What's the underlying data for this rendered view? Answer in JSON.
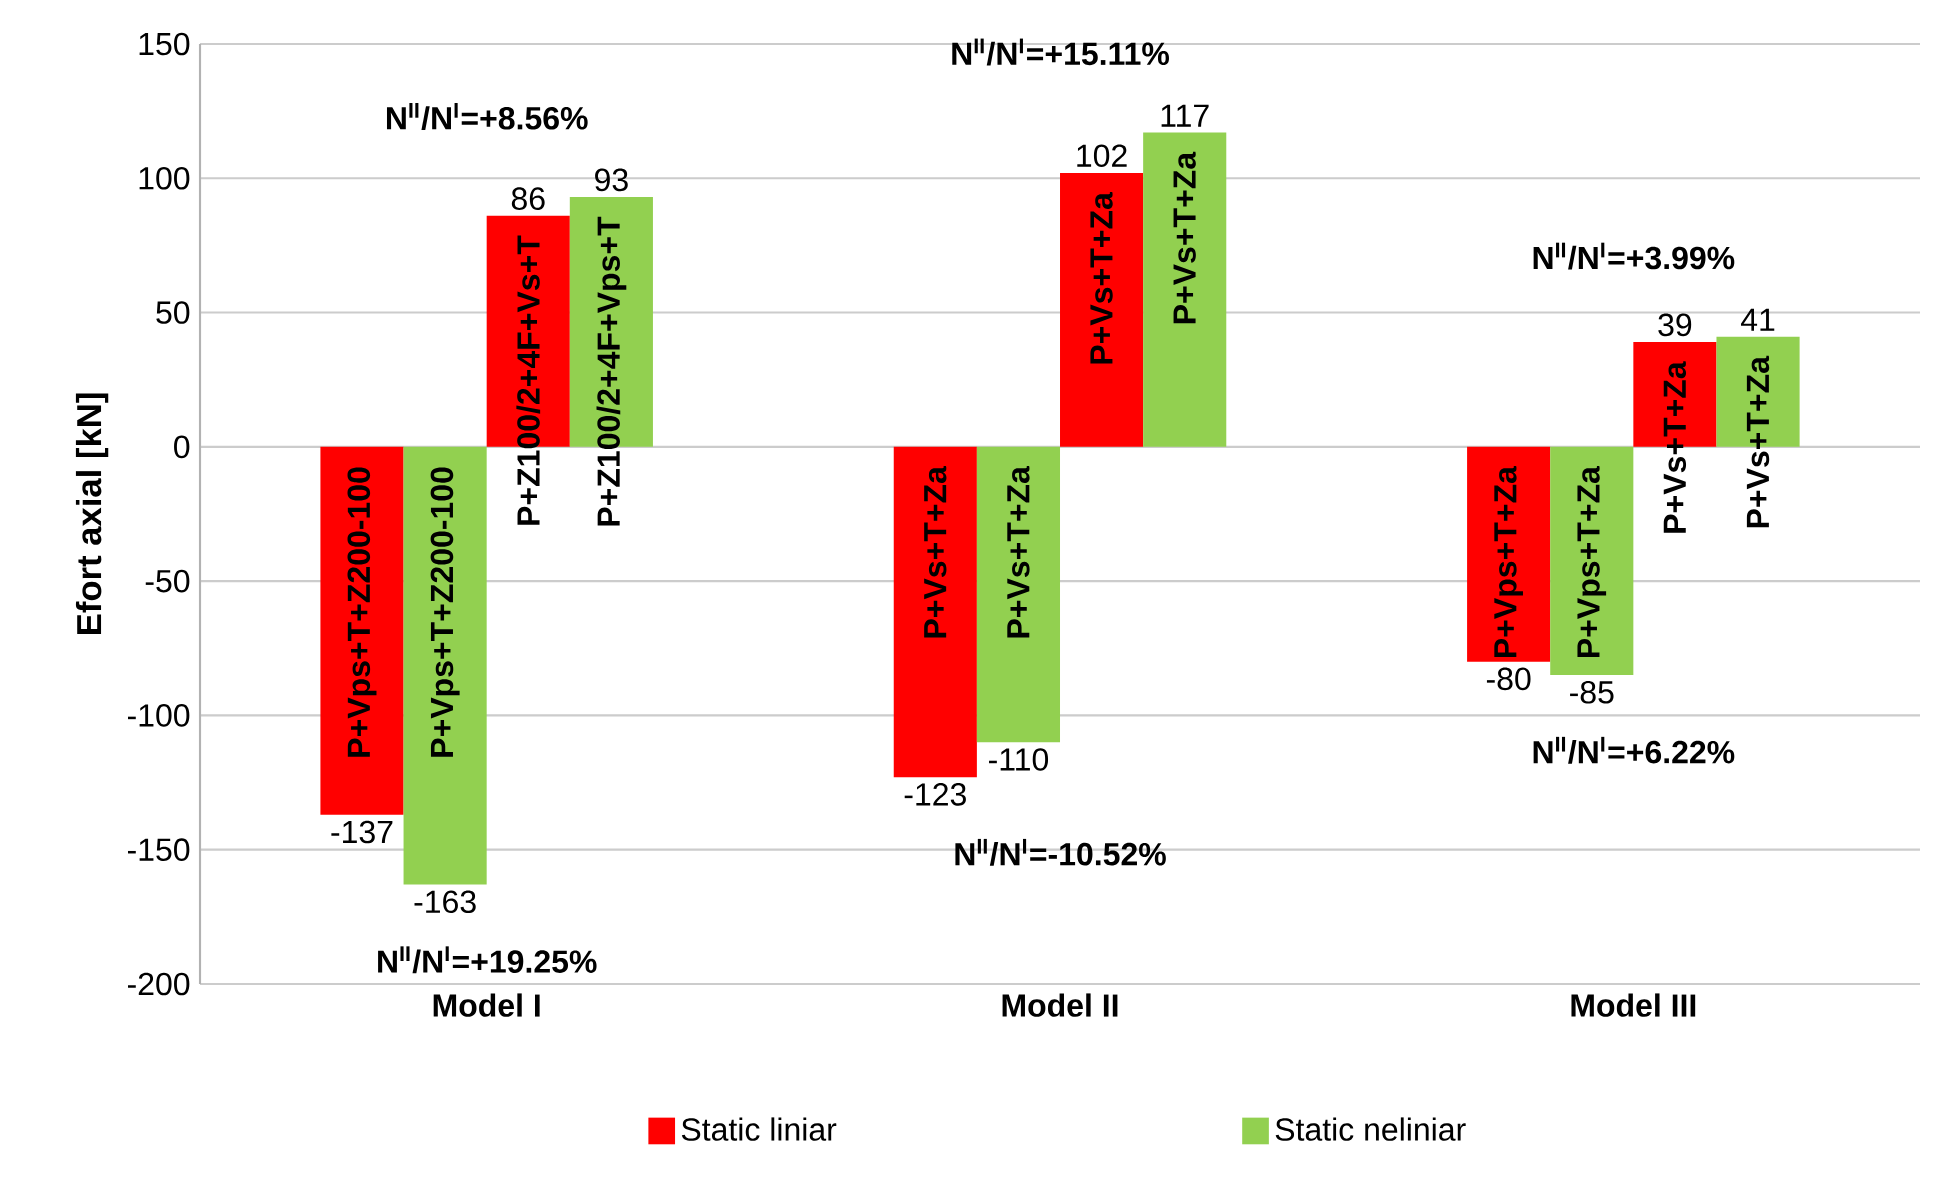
{
  "chart_data": {
    "type": "bar",
    "ylabel": "Efort axial [kN]",
    "categories": [
      "Model I",
      "Model II",
      "Model III"
    ],
    "series": [
      {
        "name": "Static liniar",
        "color": "#ff0000",
        "values": [
          -137,
          -123,
          -80
        ]
      },
      {
        "name": "Static neliniar",
        "color": "#92d050",
        "values": [
          -163,
          -110,
          -85
        ]
      },
      {
        "color": "#ff0000",
        "values": [
          86,
          102,
          39
        ]
      },
      {
        "color": "#92d050",
        "values": [
          93,
          117,
          41
        ]
      }
    ],
    "data_labels": true,
    "ylim": [
      -200,
      150
    ],
    "yticks": [
      -200,
      -150,
      -100,
      -50,
      0,
      50,
      100,
      150
    ],
    "grid": "y",
    "legend": "bottom",
    "annotations": [
      "P+Vps+T+Z200-100",
      "P+Vs+T+Za",
      "P+Vps+T+Za",
      "P+Vps+T+Z200-100",
      "P+Vs+T+Za",
      "P+Vps+T+Za",
      "P+Z100/2+4F+Vs+T",
      "P+Vs+T+Za",
      "P+Vs+T+Za",
      "P+Z100/2+4F+Vps+T",
      "P+Vs+T+Za",
      "P+Vs+T+Za",
      "N$^{II}$/N$^{I}$=+19.25%",
      "N$^{II}$/N$^{I}$=+8.56%",
      "N$^{II}$/N$^{I}$=-10.52%",
      "N$^{II}$/N$^{I}$=+15.11%",
      "N$^{II}$/N$^{I}$=+6.22%",
      "N$^{II}$/N$^{I}$=+3.99%"
    ]
  }
}
